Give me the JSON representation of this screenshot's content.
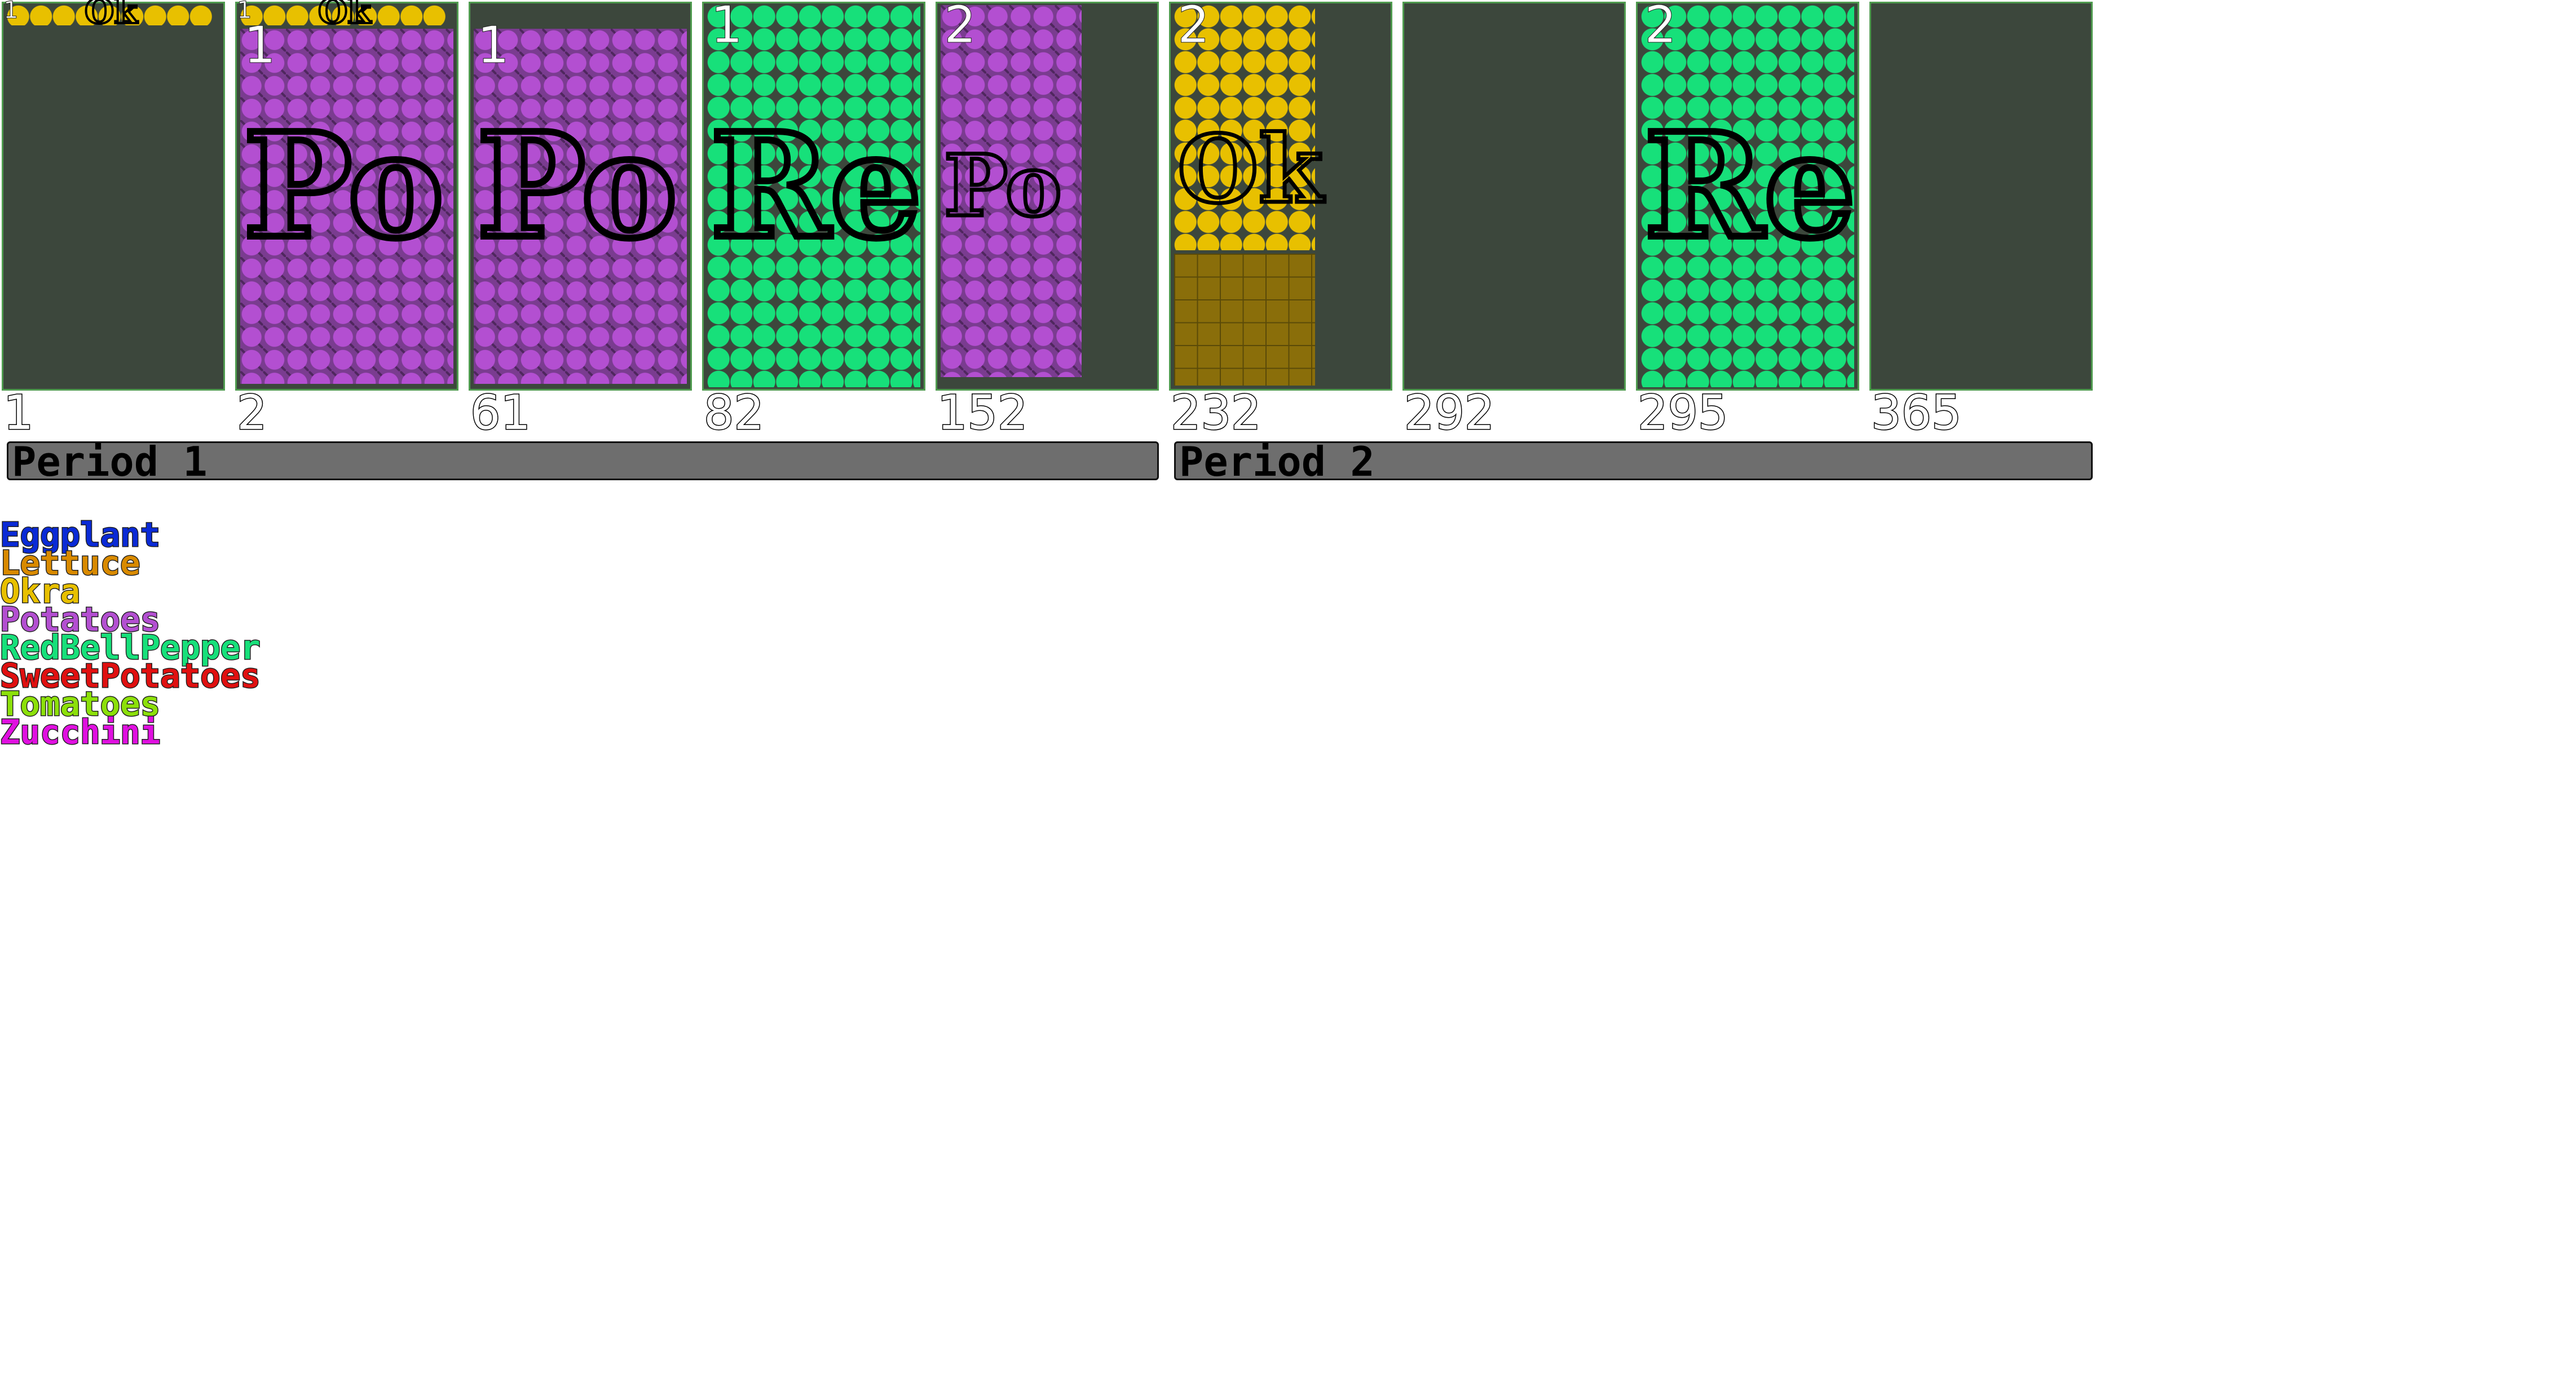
{
  "colors": {
    "background": "#ffffff",
    "panel": "#3c473c",
    "panel_border": "#4f9b4f",
    "period_bar": "#6e6e6e"
  },
  "day_labels": [
    "1",
    "2",
    "61",
    "82",
    "152",
    "232",
    "292",
    "295",
    "365"
  ],
  "periods": [
    {
      "label": "Period 1"
    },
    {
      "label": "Period 2"
    }
  ],
  "plantings": [
    {
      "crop": "Okra",
      "code": "Ok",
      "succession": "1",
      "slot": 0,
      "pattern": "circle",
      "fill": "#e8c000",
      "fill_fraction": 0.06
    },
    {
      "crop": "Okra",
      "code": "Ok",
      "succession": "1",
      "slot": 1,
      "pattern": "circle",
      "fill": "#e8c000",
      "fill_fraction": 0.06
    },
    {
      "crop": "Potatoes",
      "code": "Po",
      "succession": "1",
      "slot": 1,
      "pattern": "diamond",
      "fill": "#b34fd1",
      "fill_fraction": 0.94
    },
    {
      "crop": "Potatoes",
      "code": "Po",
      "succession": "1",
      "slot": 2,
      "pattern": "diamond",
      "fill": "#b34fd1",
      "fill_fraction": 0.94
    },
    {
      "crop": "RedBellPepper",
      "code": "Re",
      "succession": "1",
      "slot": 3,
      "pattern": "circle",
      "fill": "#17e07a",
      "fill_fraction": 1.0
    },
    {
      "crop": "Potatoes",
      "code": "Po",
      "succession": "2",
      "slot": 4,
      "pattern": "diamond",
      "fill": "#b34fd1",
      "fill_fraction": 1.0
    },
    {
      "crop": "Okra",
      "code": "Ok",
      "succession": "2",
      "slot": 5,
      "pattern": "circle",
      "fill": "#e8c000",
      "fill_fraction": 1.0
    },
    {
      "crop": "RedBellPepper",
      "code": "Re",
      "succession": "2",
      "slot": 7,
      "pattern": "circle",
      "fill": "#17e07a",
      "fill_fraction": 1.0
    }
  ],
  "legend": [
    {
      "name": "Eggplant",
      "color": "#0a2ad6"
    },
    {
      "name": "Lettuce",
      "color": "#d98a00"
    },
    {
      "name": "Okra",
      "color": "#e8c000"
    },
    {
      "name": "Potatoes",
      "color": "#b34fd1"
    },
    {
      "name": "RedBellPepper",
      "color": "#17e07a"
    },
    {
      "name": "SweetPotatoes",
      "color": "#e01010"
    },
    {
      "name": "Tomatoes",
      "color": "#8ce00a"
    },
    {
      "name": "Zucchini",
      "color": "#e010e0"
    }
  ]
}
